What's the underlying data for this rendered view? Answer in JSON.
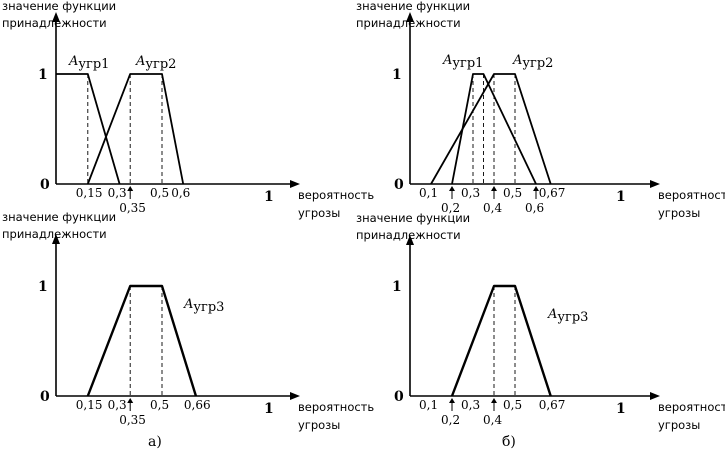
{
  "captions": {
    "a": "а)",
    "b": "б)"
  },
  "panels": [
    {
      "id": "a-top",
      "ylabel": [
        "значение функции",
        "принадлежности"
      ],
      "xlabel": [
        "вероятность",
        "угрозы"
      ],
      "ytick_one": "1",
      "origin": "0",
      "xticks": [
        {
          "value": 0.15,
          "label": "0,15"
        },
        {
          "value": 0.3,
          "label": "0,3"
        },
        {
          "value": 0.35,
          "label": "0,35",
          "below": true
        },
        {
          "value": 0.5,
          "label": "0,5"
        },
        {
          "value": 0.6,
          "label": "0,6"
        },
        {
          "value": 1,
          "label": "1",
          "bold": true
        }
      ],
      "curves": [
        {
          "name": "A",
          "sub": "угр1",
          "points": [
            [
              0,
              1
            ],
            [
              0.15,
              1
            ],
            [
              0.3,
              0
            ]
          ]
        },
        {
          "name": "A",
          "sub": "угр2",
          "points": [
            [
              0.15,
              0
            ],
            [
              0.35,
              1
            ],
            [
              0.5,
              1
            ],
            [
              0.6,
              0
            ]
          ]
        }
      ],
      "dashes": [
        0.15,
        0.35,
        0.5
      ]
    },
    {
      "id": "b-top",
      "ylabel": [
        "значение функции",
        "принадлежности"
      ],
      "xlabel": [
        "вероятность",
        "угрозы"
      ],
      "ytick_one": "1",
      "origin": "0",
      "xticks": [
        {
          "value": 0.1,
          "label": "0,1"
        },
        {
          "value": 0.2,
          "label": "0,2",
          "below": true
        },
        {
          "value": 0.3,
          "label": "0,3"
        },
        {
          "value": 0.4,
          "label": "0,4",
          "below": true
        },
        {
          "value": 0.5,
          "label": "0,5"
        },
        {
          "value": 0.6,
          "label": "0,6",
          "below": true
        },
        {
          "value": 0.67,
          "label": "0,67"
        },
        {
          "value": 1,
          "label": "1",
          "bold": true
        }
      ],
      "curves": [
        {
          "name": "A",
          "sub": "угр1",
          "points": [
            [
              0.2,
              0
            ],
            [
              0.3,
              1
            ],
            [
              0.35,
              1
            ],
            [
              0.6,
              0
            ]
          ]
        },
        {
          "name": "A",
          "sub": "угр2",
          "points": [
            [
              0.1,
              0
            ],
            [
              0.4,
              1
            ],
            [
              0.5,
              1
            ],
            [
              0.67,
              0
            ]
          ]
        }
      ],
      "dashes": [
        0.3,
        0.35,
        0.4,
        0.5
      ]
    },
    {
      "id": "a-bottom",
      "ylabel": [
        "значение функции",
        "принадлежности"
      ],
      "xlabel": [
        "вероятность",
        "угрозы"
      ],
      "ytick_one": "1",
      "origin": "0",
      "xticks": [
        {
          "value": 0.15,
          "label": "0,15"
        },
        {
          "value": 0.3,
          "label": "0,3"
        },
        {
          "value": 0.35,
          "label": "0,35",
          "below": true
        },
        {
          "value": 0.5,
          "label": "0,5"
        },
        {
          "value": 0.66,
          "label": "0,66"
        },
        {
          "value": 1,
          "label": "1",
          "bold": true
        }
      ],
      "curves": [
        {
          "name": "A",
          "sub": "угр3",
          "points": [
            [
              0.15,
              0
            ],
            [
              0.35,
              1
            ],
            [
              0.5,
              1
            ],
            [
              0.66,
              0
            ]
          ]
        }
      ],
      "dashes": [
        0.35,
        0.5
      ]
    },
    {
      "id": "b-bottom",
      "ylabel": [
        "значение функции",
        "принадлежности"
      ],
      "xlabel": [
        "вероятность",
        "угрозы"
      ],
      "ytick_one": "1",
      "origin": "0",
      "xticks": [
        {
          "value": 0.1,
          "label": "0,1"
        },
        {
          "value": 0.2,
          "label": "0,2",
          "below": true
        },
        {
          "value": 0.3,
          "label": "0,3"
        },
        {
          "value": 0.4,
          "label": "0,4",
          "below": true
        },
        {
          "value": 0.5,
          "label": "0,5"
        },
        {
          "value": 0.67,
          "label": "0,67"
        },
        {
          "value": 1,
          "label": "1",
          "bold": true
        }
      ],
      "curves": [
        {
          "name": "A",
          "sub": "угр3",
          "points": [
            [
              0.2,
              0
            ],
            [
              0.4,
              1
            ],
            [
              0.5,
              1
            ],
            [
              0.67,
              0
            ]
          ]
        }
      ],
      "dashes": [
        0.4,
        0.5
      ]
    }
  ]
}
